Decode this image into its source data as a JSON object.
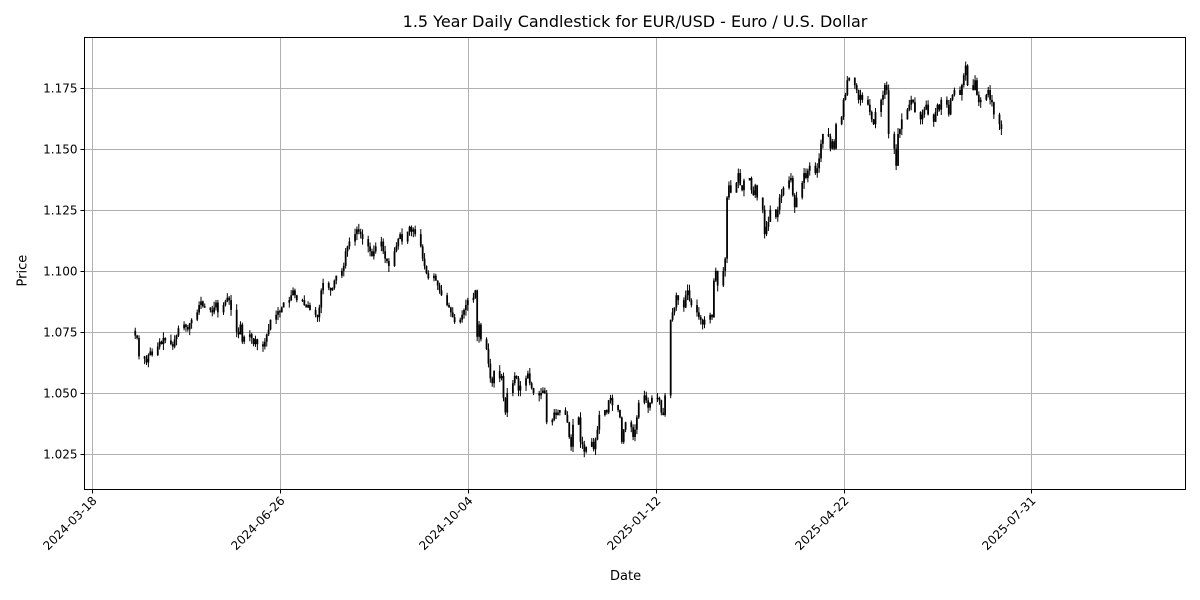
{
  "chart_data": {
    "type": "candlestick",
    "title": "1.5 Year Daily Candlestick for EUR/USD - Euro / U.S. Dollar",
    "xlabel": "Date",
    "ylabel": "Price",
    "ylim": [
      1.0105,
      1.1955
    ],
    "xlim": [
      "2024-03-14",
      "2025-10-21"
    ],
    "grid": true,
    "y_ticks": [
      "1.025",
      "1.050",
      "1.075",
      "1.100",
      "1.125",
      "1.150",
      "1.175"
    ],
    "x_ticks": [
      "2024-03-18",
      "2024-06-26",
      "2024-10-04",
      "2025-01-12",
      "2025-04-22",
      "2025-07-31"
    ],
    "candle_color": "#000000",
    "grid_color": "#b0b0b0",
    "start_date": "2024-04-10",
    "closes": [
      1.0735,
      1.0725,
      1.065,
      1.064,
      1.0625,
      1.0655,
      1.067,
      1.0655,
      1.069,
      1.071,
      1.07,
      1.0725,
      1.0715,
      1.07,
      1.069,
      1.072,
      1.0735,
      1.0765,
      1.078,
      1.077,
      1.076,
      1.0785,
      1.08,
      1.083,
      1.086,
      1.0875,
      1.0855,
      1.085,
      1.084,
      1.083,
      1.085,
      1.087,
      1.083,
      1.086,
      1.0875,
      1.089,
      1.088,
      1.084,
      1.075,
      1.074,
      1.078,
      1.071,
      1.073,
      1.074,
      1.0725,
      1.07,
      1.072,
      1.07,
      1.069,
      1.071,
      1.074,
      1.076,
      1.08,
      1.082,
      1.0835,
      1.083,
      1.085,
      1.087,
      1.088,
      1.09,
      1.092,
      1.09,
      1.088,
      1.088,
      1.086,
      1.085,
      1.086,
      1.084,
      1.082,
      1.081,
      1.085,
      1.092,
      1.095,
      1.093,
      1.092,
      1.093,
      1.096,
      1.098,
      1.1,
      1.102,
      1.108,
      1.11,
      1.112,
      1.115,
      1.117,
      1.116,
      1.115,
      1.113,
      1.11,
      1.108,
      1.106,
      1.108,
      1.11,
      1.112,
      1.108,
      1.105,
      1.104,
      1.102,
      1.108,
      1.11,
      1.113,
      1.115,
      1.112,
      1.116,
      1.118,
      1.116,
      1.117,
      1.115,
      1.11,
      1.105,
      1.102,
      1.099,
      1.097,
      1.098,
      1.096,
      1.094,
      1.092,
      1.09,
      1.086,
      1.085,
      1.083,
      1.081,
      1.079,
      1.08,
      1.082,
      1.084,
      1.086,
      1.088,
      1.089,
      1.092,
      1.073,
      1.078,
      1.072,
      1.068,
      1.062,
      1.056,
      1.054,
      1.059,
      1.056,
      1.057,
      1.048,
      1.042,
      1.05,
      1.054,
      1.057,
      1.056,
      1.051,
      1.053,
      1.056,
      1.058,
      1.054,
      1.052,
      1.05,
      1.049,
      1.05,
      1.051,
      1.05,
      1.038,
      1.039,
      1.042,
      1.041,
      1.042,
      1.043,
      1.041,
      1.038,
      1.032,
      1.028,
      1.037,
      1.04,
      1.03,
      1.029,
      1.026,
      1.028,
      1.03,
      1.027,
      1.031,
      1.035,
      1.041,
      1.043,
      1.042,
      1.047,
      1.048,
      1.045,
      1.043,
      1.04,
      1.03,
      1.035,
      1.038,
      1.036,
      1.032,
      1.035,
      1.04,
      1.046,
      1.049,
      1.047,
      1.044,
      1.046,
      1.048,
      1.048,
      1.047,
      1.042,
      1.041,
      1.049,
      1.08,
      1.083,
      1.085,
      1.09,
      1.088,
      1.085,
      1.09,
      1.092,
      1.088,
      1.086,
      1.083,
      1.081,
      1.08,
      1.078,
      1.08,
      1.082,
      1.081,
      1.096,
      1.1,
      1.094,
      1.1,
      1.105,
      1.13,
      1.135,
      1.132,
      1.136,
      1.14,
      1.135,
      1.133,
      1.137,
      1.138,
      1.133,
      1.131,
      1.135,
      1.13,
      1.125,
      1.115,
      1.118,
      1.12,
      1.125,
      1.122,
      1.125,
      1.13,
      1.131,
      1.134,
      1.137,
      1.138,
      1.131,
      1.126,
      1.13,
      1.136,
      1.14,
      1.138,
      1.141,
      1.143,
      1.14,
      1.142,
      1.146,
      1.152,
      1.156,
      1.155,
      1.15,
      1.153,
      1.15,
      1.16,
      1.163,
      1.17,
      1.172,
      1.178,
      1.179,
      1.176,
      1.174,
      1.17,
      1.172,
      1.17,
      1.168,
      1.165,
      1.162,
      1.16,
      1.165,
      1.17,
      1.172,
      1.176,
      1.174,
      1.156,
      1.15,
      1.143,
      1.156,
      1.158,
      1.162,
      1.166,
      1.168,
      1.17,
      1.169,
      1.165,
      1.162,
      1.164,
      1.166,
      1.168,
      1.164,
      1.161,
      1.165,
      1.168,
      1.166,
      1.17,
      1.168,
      1.164,
      1.17,
      1.172,
      1.174,
      1.172,
      1.176,
      1.18,
      1.184,
      1.176,
      1.174,
      1.178,
      1.172,
      1.169,
      1.17,
      1.172,
      1.174,
      1.17,
      1.169,
      1.164,
      1.16,
      1.158
    ]
  }
}
